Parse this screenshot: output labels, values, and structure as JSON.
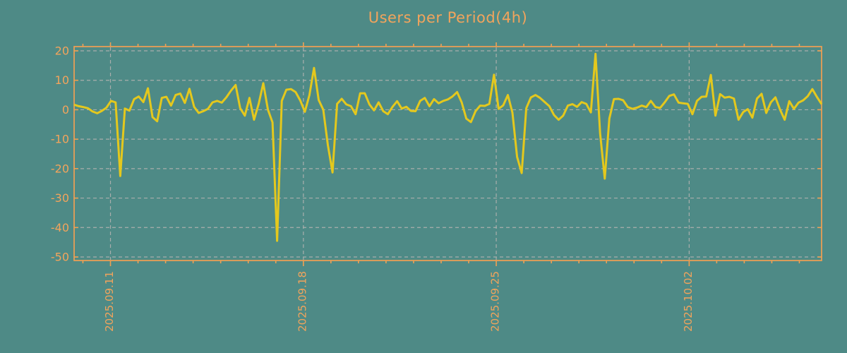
{
  "chart_data": {
    "type": "line",
    "title": "Users per Period(4h)",
    "period": "4h",
    "legend": "none",
    "grid": "dashed",
    "y_axis": {
      "min": -50,
      "max": 20,
      "tick_interval": 10,
      "tick_labels": [
        "20",
        "10",
        "0",
        "-10",
        "-20",
        "-30",
        "-40",
        "-50"
      ]
    },
    "x_axis": {
      "tick_labels": [
        "2025.09.11",
        "2025.09.18",
        "2025.09.25",
        "2025.10.02"
      ],
      "tick_positions": [
        7.88,
        49.69,
        91.49,
        133.3
      ],
      "minor_tick_start": 1.908,
      "minor_tick_step": 5.972
    },
    "series": [
      {
        "name": "Users",
        "values": [
          1.7,
          1.2,
          0.9,
          0.5,
          -0.6,
          -1.2,
          -0.4,
          0.7,
          3.0,
          2.5,
          -22.5,
          0.4,
          -0.3,
          3.6,
          4.5,
          2.6,
          7.3,
          -2.5,
          -3.9,
          4.0,
          4.4,
          1.4,
          5.0,
          5.5,
          2.3,
          7.1,
          1.0,
          -1.1,
          -0.5,
          0.3,
          2.5,
          3.0,
          2.4,
          4.2,
          6.5,
          8.4,
          0.5,
          -2.0,
          4.0,
          -3.4,
          2.0,
          9.0,
          0.0,
          -4.3,
          -44.5,
          3.0,
          6.8,
          7.0,
          6.0,
          3.2,
          -0.7,
          5.0,
          14.2,
          3.3,
          0.0,
          -12.0,
          -21.3,
          2.0,
          3.7,
          1.8,
          1.2,
          -1.5,
          5.6,
          5.6,
          1.8,
          -0.2,
          2.5,
          -0.5,
          -1.5,
          1.0,
          2.9,
          0.4,
          1.0,
          -0.4,
          -0.5,
          3.0,
          4.0,
          1.2,
          3.6,
          2.2,
          3.0,
          3.5,
          4.5,
          6.0,
          2.5,
          -3.0,
          -4.2,
          -0.5,
          1.4,
          1.3,
          2.0,
          11.9,
          0.3,
          1.5,
          5.0,
          -1.0,
          -16.0,
          -21.5,
          0.5,
          4.2,
          5.0,
          4.0,
          2.6,
          1.2,
          -1.8,
          -3.4,
          -2.0,
          1.4,
          1.9,
          1.0,
          2.6,
          2.0,
          -0.9,
          19.0,
          -8.0,
          -23.4,
          -3.0,
          3.6,
          3.7,
          3.2,
          0.9,
          0.3,
          0.7,
          1.4,
          0.9,
          3.0,
          0.9,
          0.6,
          2.5,
          4.7,
          5.2,
          2.4,
          2.2,
          2.0,
          -1.5,
          3.0,
          4.4,
          4.5,
          11.8,
          -2.0,
          5.3,
          4.1,
          4.4,
          3.8,
          -3.4,
          -0.8,
          0.2,
          -2.7,
          3.8,
          5.4,
          -1.1,
          2.5,
          4.2,
          0.0,
          -3.4,
          2.9,
          0.3,
          2.4,
          3.2,
          4.6,
          7.0,
          4.3,
          1.9
        ]
      }
    ],
    "colors": {
      "background": "#4E8A86",
      "axis": "#F0A053",
      "text": "#F2A45C",
      "line": "#E4C81D",
      "grid": "#A9AEAC"
    }
  }
}
